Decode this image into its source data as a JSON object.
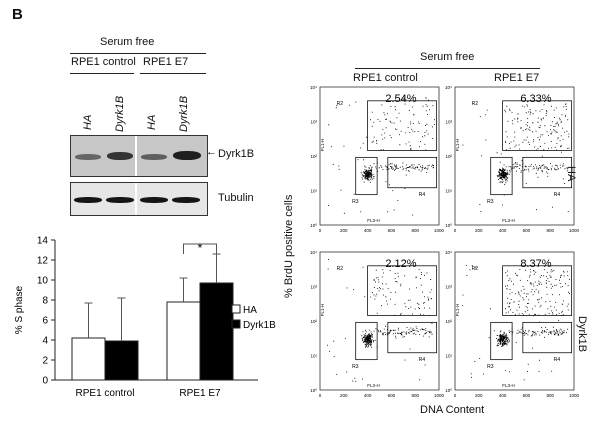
{
  "panel_label": "B",
  "blot": {
    "condition_label": "Serum free",
    "group_labels": [
      "RPE1 control",
      "RPE1 E7"
    ],
    "lane_labels": [
      "HA",
      "Dyrk1B",
      "HA",
      "Dyrk1B"
    ],
    "band_labels": [
      "Dyrk1B",
      "Tubulin"
    ],
    "arrow_glyph": "←",
    "band_intensity_top": [
      0.35,
      0.7,
      0.4,
      0.85
    ]
  },
  "chart_data": {
    "type": "bar",
    "categories": [
      "RPE1 control",
      "RPE1 E7"
    ],
    "series": [
      {
        "name": "HA",
        "values": [
          4.2,
          7.8
        ],
        "errors": [
          3.5,
          2.4
        ],
        "color": "#ffffff"
      },
      {
        "name": "Dyrk1B",
        "values": [
          3.9,
          9.7
        ],
        "errors": [
          4.3,
          2.9
        ],
        "color": "#000000"
      }
    ],
    "ylabel": "% S phase",
    "ylim": [
      0,
      14
    ],
    "yticks": [
      0,
      2,
      4,
      6,
      8,
      10,
      12,
      14
    ],
    "significance": {
      "category": "RPE1 E7",
      "label": "*"
    },
    "legend_placement": "right"
  },
  "flow": {
    "condition_label": "Serum free",
    "column_labels": [
      "RPE1 control",
      "RPE1 E7"
    ],
    "row_labels": [
      "HA",
      "Dyrk1B"
    ],
    "ylabel": "% BrdU positive cells",
    "xlabel": "DNA Content",
    "plot_xlabel": "FL3-H",
    "plot_ylabel": "FL1-H",
    "x_ticks": [
      "0",
      "200",
      "400",
      "600",
      "800",
      "1000"
    ],
    "y_ticks": [
      "10⁰",
      "10¹",
      "10²",
      "10³",
      "10⁴"
    ],
    "gate_labels": [
      "R2",
      "R3",
      "R4"
    ],
    "percentages": [
      [
        "2.54%",
        "6.33%"
      ],
      [
        "2.12%",
        "8.37%"
      ]
    ]
  }
}
